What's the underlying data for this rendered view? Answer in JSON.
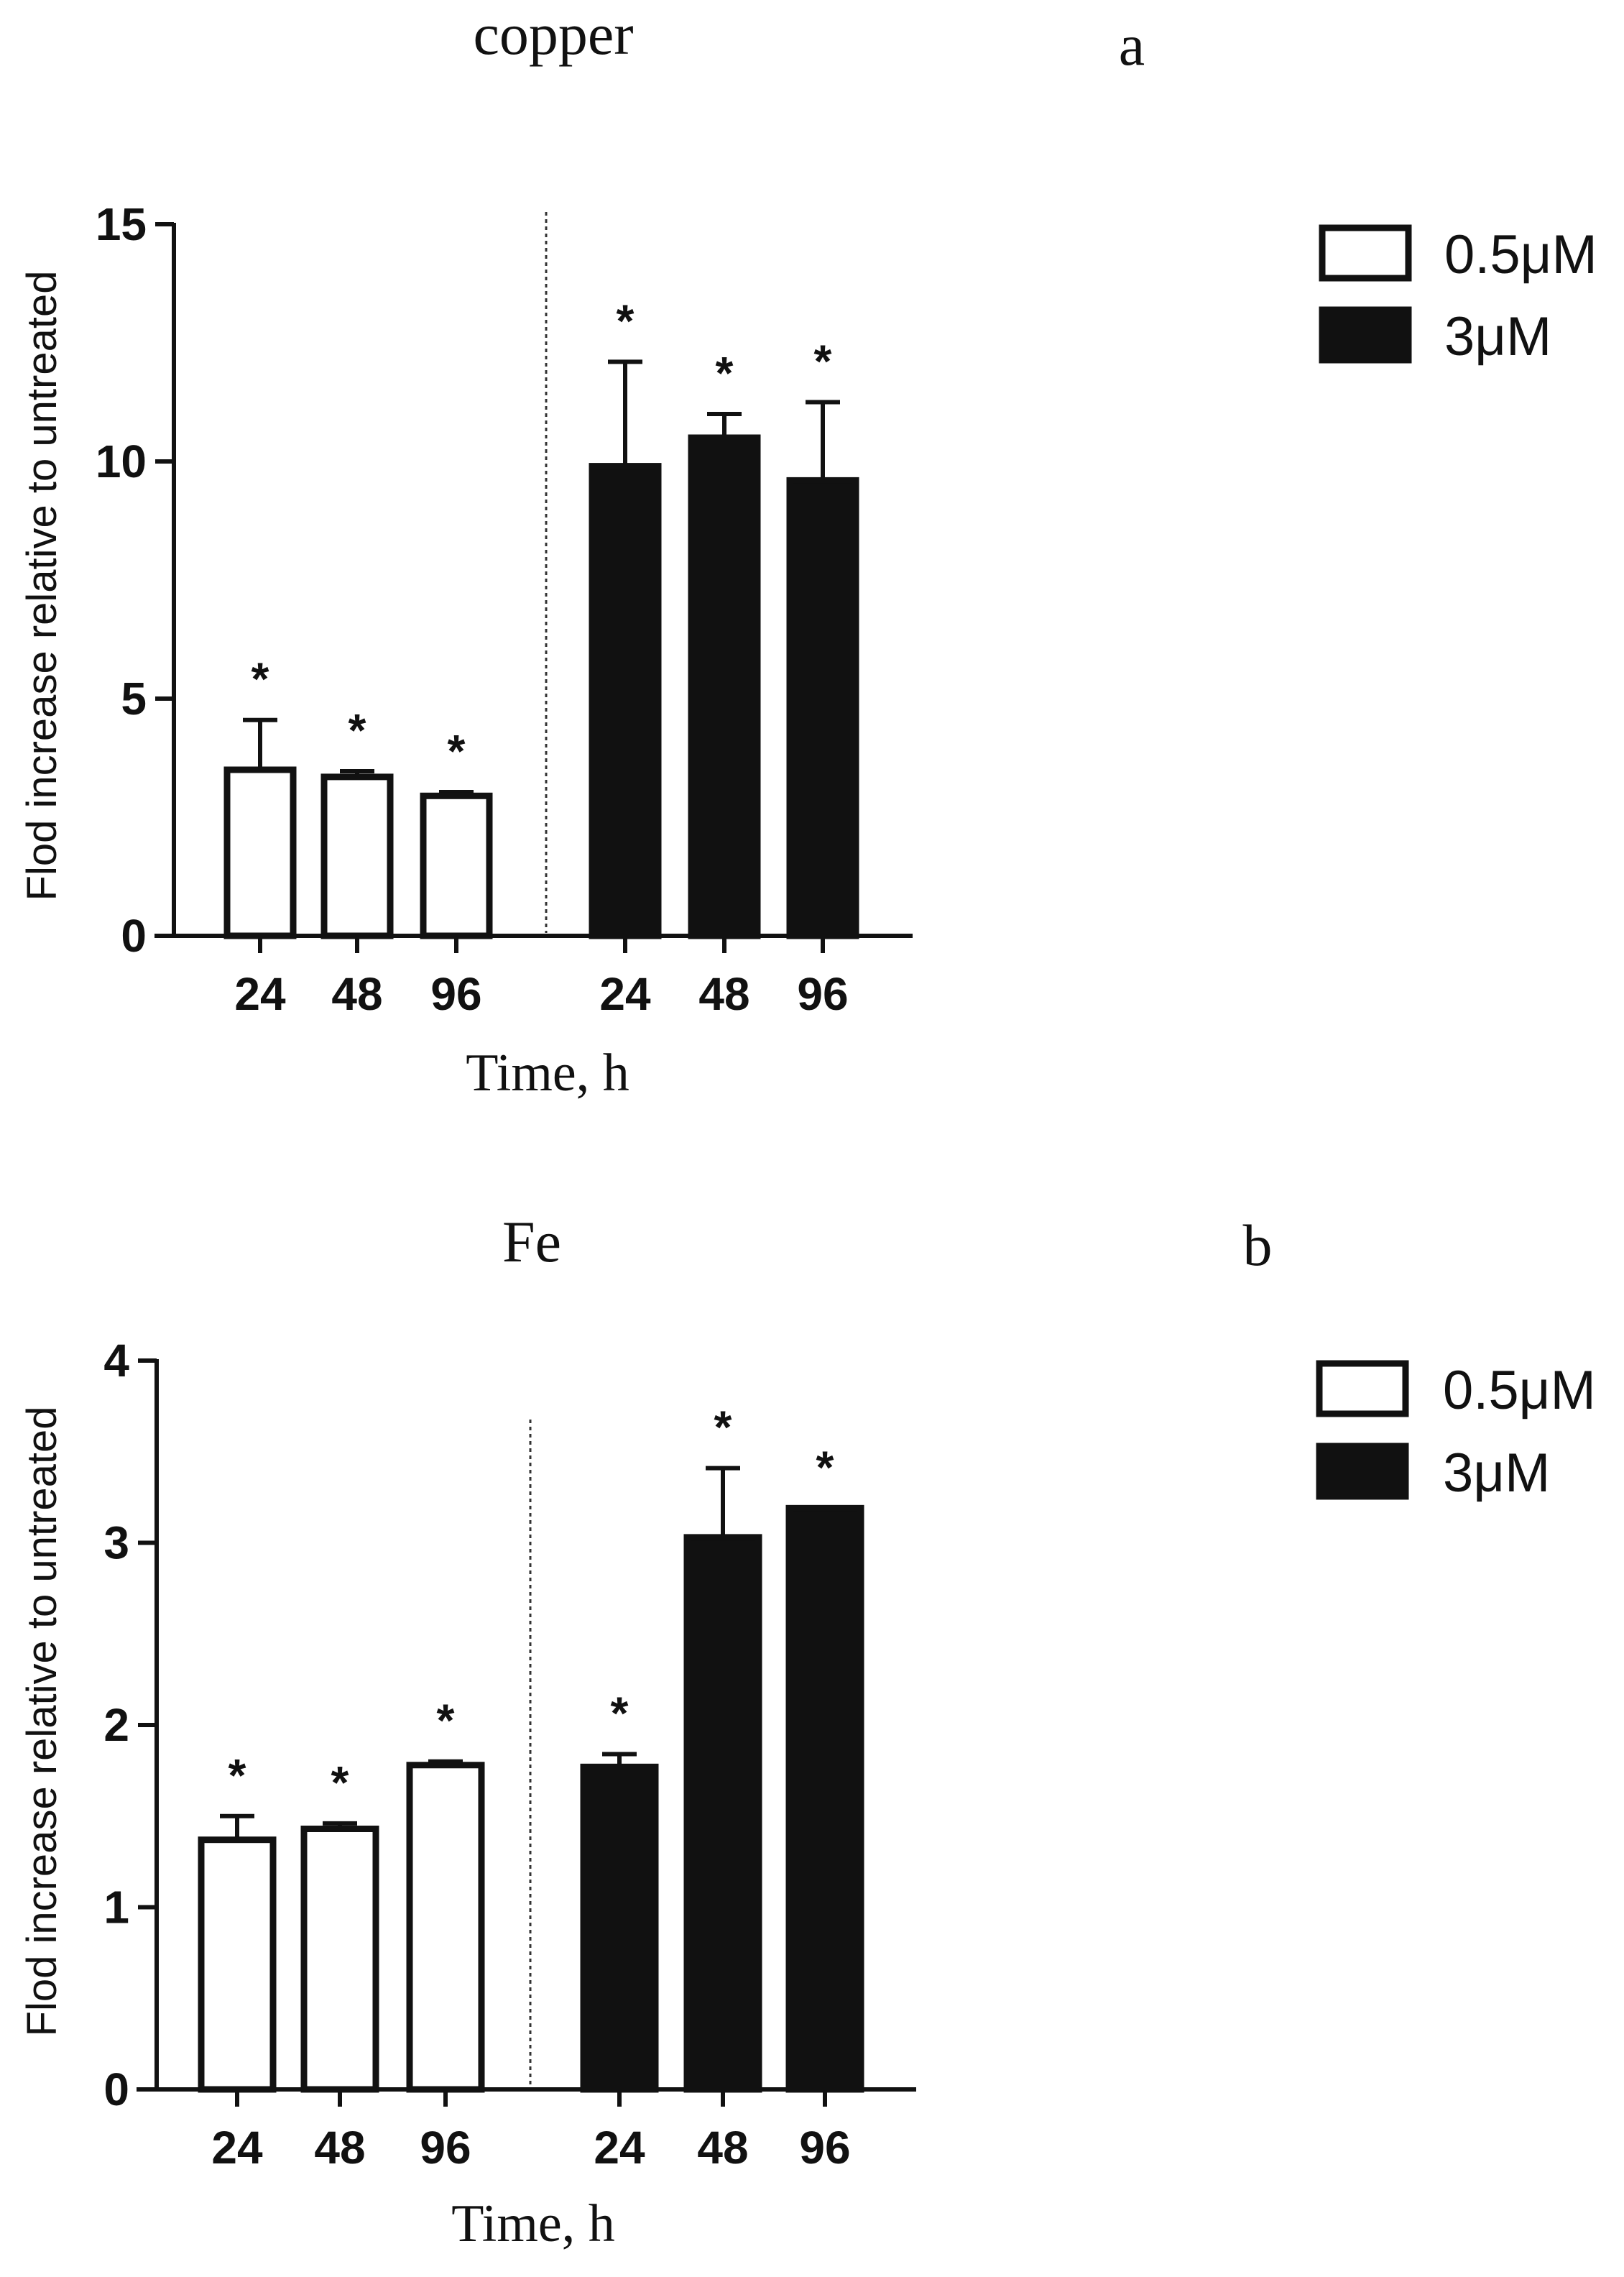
{
  "chart_data": [
    {
      "type": "bar",
      "title": "copper",
      "panel_label": "a",
      "xlabel": "Time, h",
      "ylabel": "Flod increase relative to untreated",
      "ylim": [
        0,
        15
      ],
      "yticks": [
        0,
        5,
        10,
        15
      ],
      "categories": [
        "24",
        "48",
        "96"
      ],
      "series": [
        {
          "name": "0.5μM",
          "fill": "#ffffff",
          "values": [
            3.5,
            3.35,
            2.95
          ],
          "errors": [
            1.05,
            0.12,
            0.08
          ],
          "significance": [
            "*",
            "*",
            "*"
          ]
        },
        {
          "name": "3μM",
          "fill": "#111111",
          "values": [
            9.9,
            10.5,
            9.6
          ],
          "errors": [
            2.2,
            0.5,
            1.65
          ],
          "significance": [
            "*",
            "*",
            "*"
          ]
        }
      ],
      "legend_position": "top-right",
      "group_separator": "dotted"
    },
    {
      "type": "bar",
      "title": "Fe",
      "panel_label": "b",
      "xlabel": "Time, h",
      "ylabel": "Flod increase relative to untreated",
      "ylim": [
        0,
        4
      ],
      "yticks": [
        0,
        1,
        2,
        3,
        4
      ],
      "categories": [
        "24",
        "48",
        "96"
      ],
      "series": [
        {
          "name": "0.5μM",
          "fill": "#ffffff",
          "values": [
            1.37,
            1.43,
            1.78
          ],
          "errors": [
            0.13,
            0.03,
            0.02
          ],
          "significance": [
            "*",
            "*",
            "*"
          ]
        },
        {
          "name": "3μM",
          "fill": "#111111",
          "values": [
            1.77,
            3.03,
            3.19
          ],
          "errors": [
            0.07,
            0.38,
            0.0
          ],
          "significance": [
            "*",
            "*",
            "*"
          ]
        }
      ],
      "legend_position": "top-right",
      "group_separator": "dotted"
    }
  ]
}
